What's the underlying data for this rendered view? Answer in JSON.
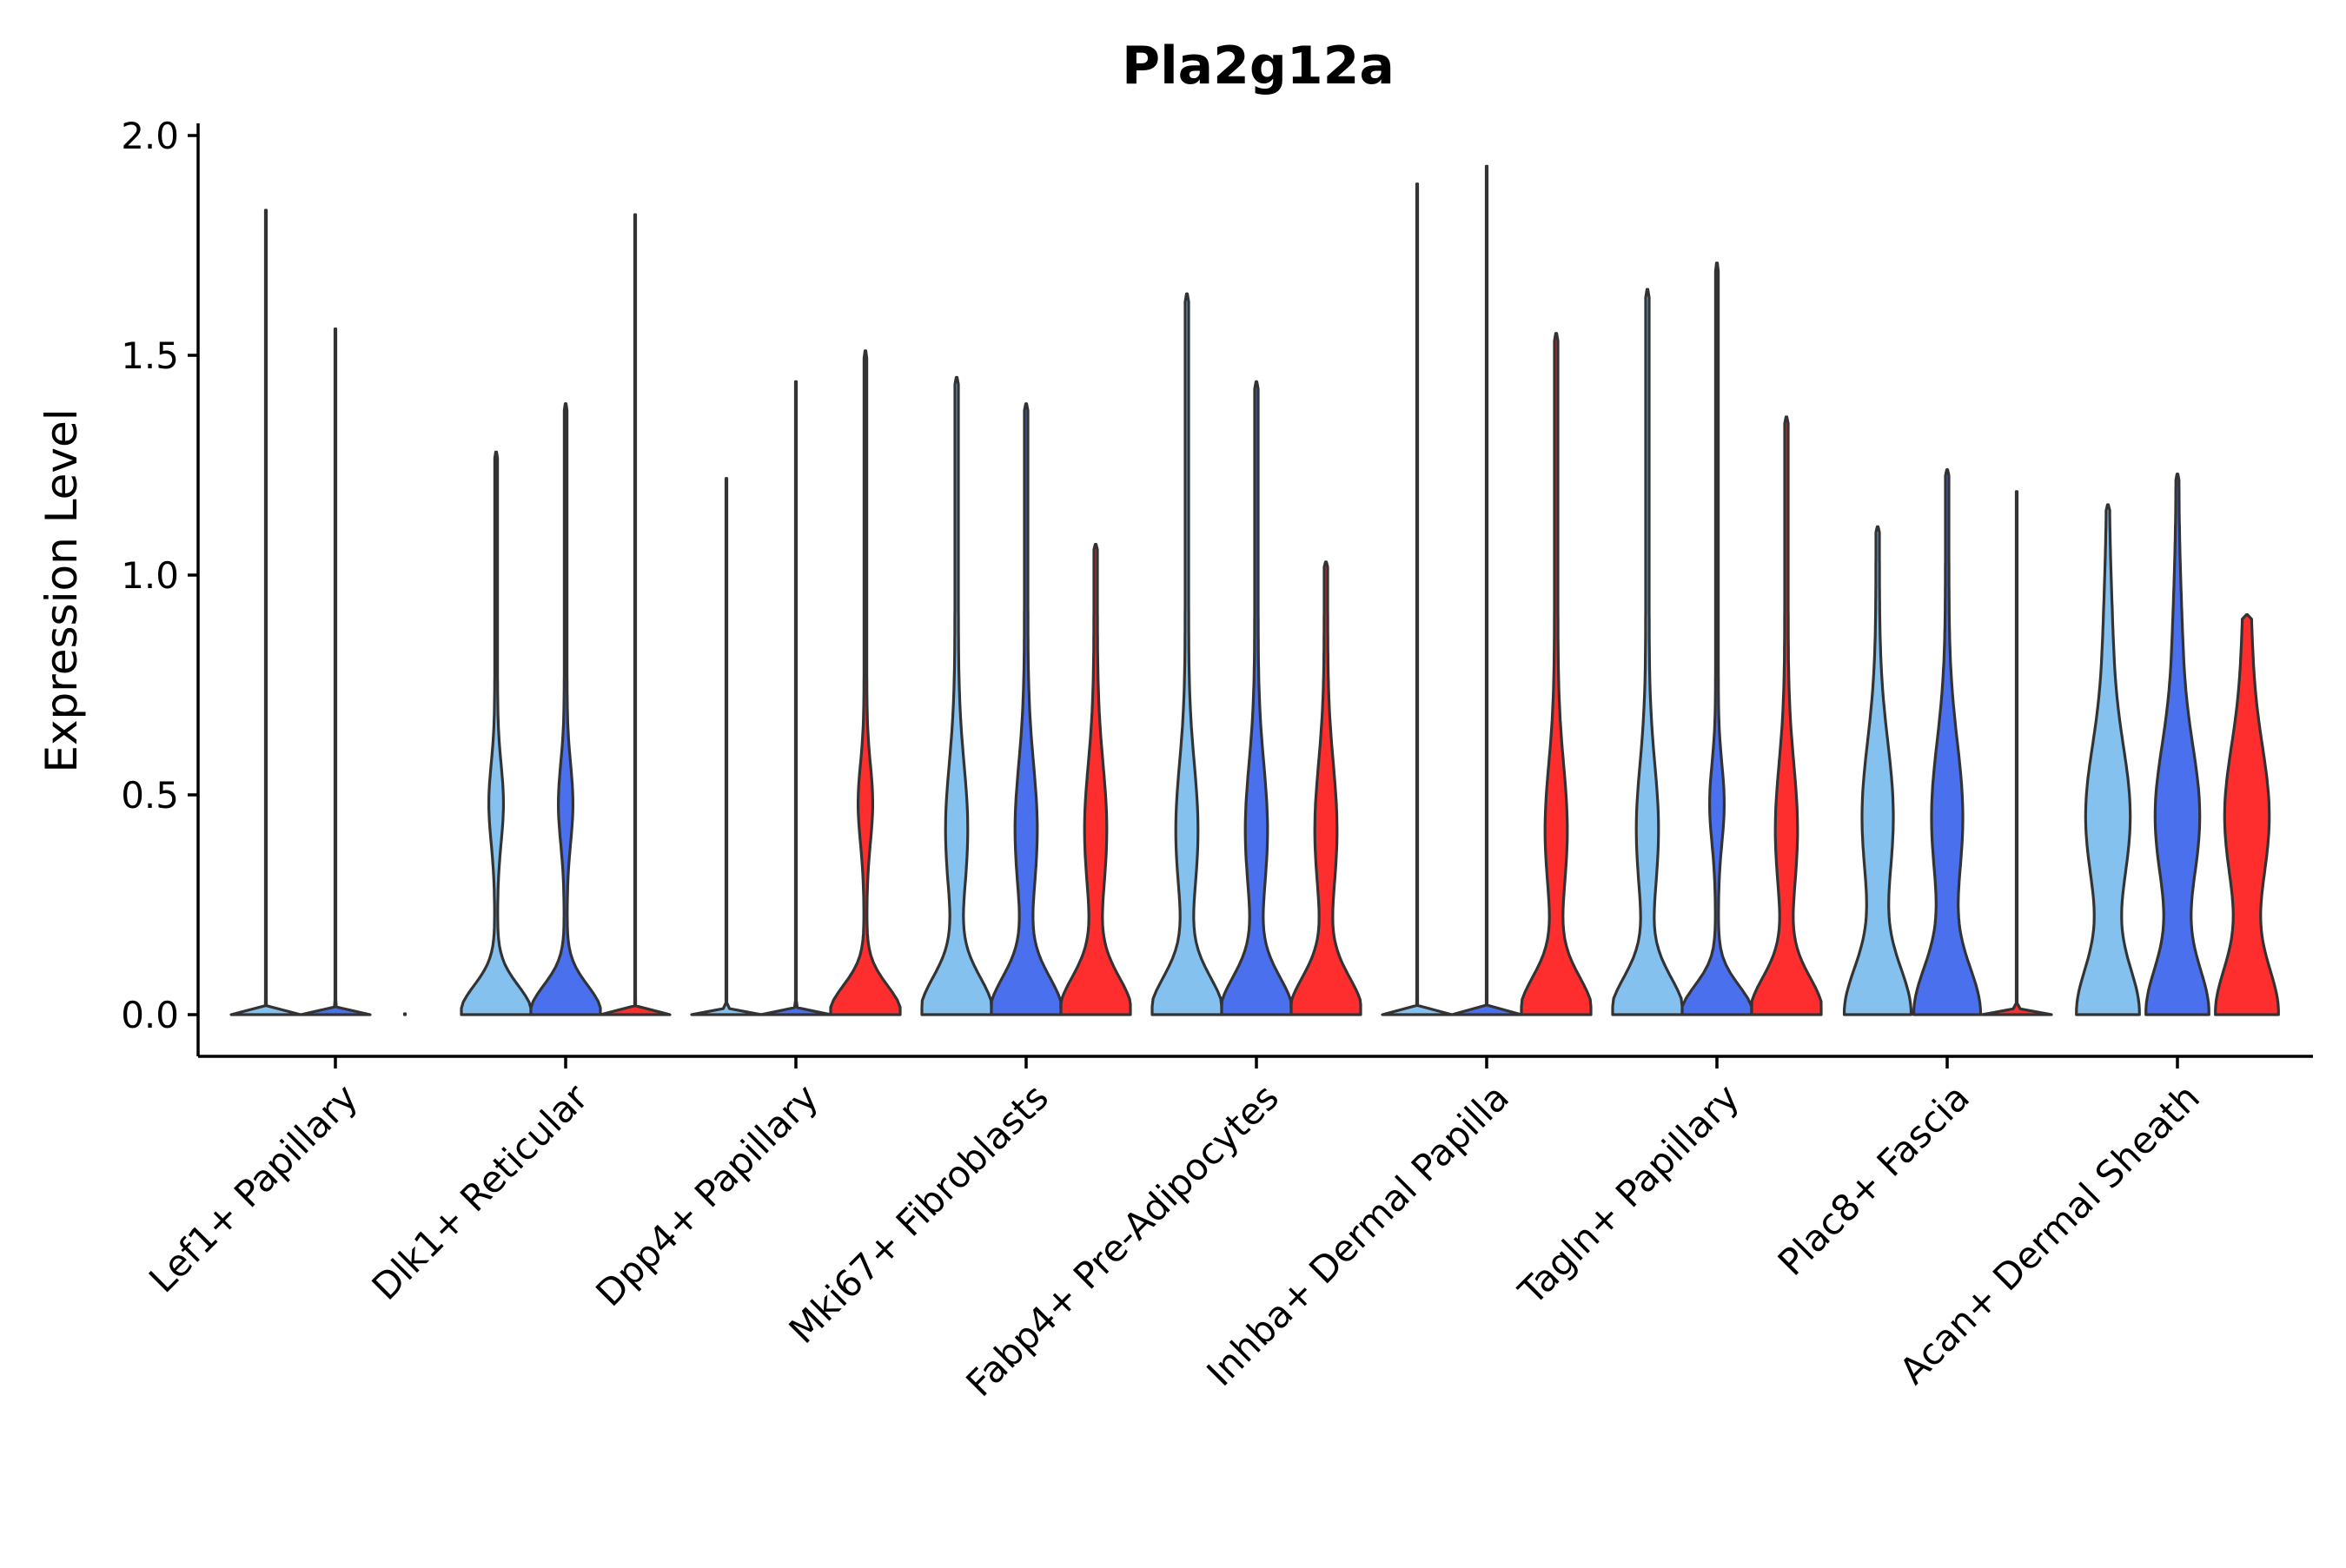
{
  "chart_data": {
    "type": "violin",
    "title": "Pla2g12a",
    "xlabel": "",
    "ylabel": "Expression Level",
    "ylim": [
      -0.1,
      2.0
    ],
    "yticks": [
      0.0,
      0.5,
      1.0,
      1.5,
      2.0
    ],
    "ytick_labels": [
      "0.0",
      "0.5",
      "1.0",
      "1.5",
      "2.0"
    ],
    "grid": false,
    "legend": "none",
    "series_colors": [
      "#85C1EE",
      "#4A70EE",
      "#FF2E2E"
    ],
    "categories": [
      "Lef1+ Papillary",
      "Dlk1+ Reticular",
      "Dpp4+ Papillary",
      "Mki67+ Fibroblasts",
      "Fabp4+ Pre-Adipocytes",
      "Inhba+ Dermal Papilla",
      "Tagln+ Papillary",
      "Plac8+ Fascia",
      "Acan+ Dermal Sheath"
    ],
    "violins": [
      [
        {
          "max": 1.83,
          "shape": "flat"
        },
        {
          "max": 1.56,
          "shape": "flat"
        },
        {
          "max": 0.0,
          "shape": "flat"
        }
      ],
      [
        {
          "max": 1.28,
          "shape": "low"
        },
        {
          "max": 1.39,
          "shape": "low"
        },
        {
          "max": 1.82,
          "shape": "flat"
        }
      ],
      [
        {
          "max": 1.22,
          "shape": "flat"
        },
        {
          "max": 1.44,
          "shape": "flat"
        },
        {
          "max": 1.51,
          "shape": "low"
        }
      ],
      [
        {
          "max": 1.45,
          "shape": "mid"
        },
        {
          "max": 1.39,
          "shape": "mid"
        },
        {
          "max": 1.07,
          "shape": "mid"
        }
      ],
      [
        {
          "max": 1.64,
          "shape": "mid"
        },
        {
          "max": 1.44,
          "shape": "mid"
        },
        {
          "max": 1.03,
          "shape": "mid"
        }
      ],
      [
        {
          "max": 1.89,
          "shape": "flat"
        },
        {
          "max": 1.93,
          "shape": "flat"
        },
        {
          "max": 1.55,
          "shape": "mid"
        }
      ],
      [
        {
          "max": 1.65,
          "shape": "mid"
        },
        {
          "max": 1.71,
          "shape": "low"
        },
        {
          "max": 1.36,
          "shape": "mid"
        }
      ],
      [
        {
          "max": 1.11,
          "shape": "high"
        },
        {
          "max": 1.24,
          "shape": "high"
        },
        {
          "max": 1.19,
          "shape": "flat"
        }
      ],
      [
        {
          "max": 1.16,
          "shape": "wide"
        },
        {
          "max": 1.23,
          "shape": "wide"
        },
        {
          "max": 0.91,
          "shape": "wide"
        }
      ]
    ]
  }
}
